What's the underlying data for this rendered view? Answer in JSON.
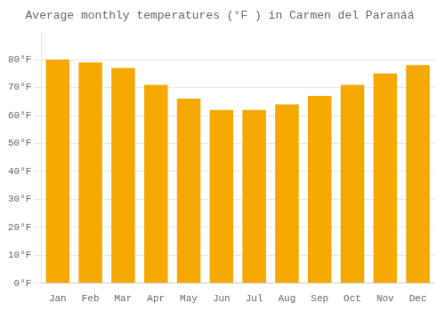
{
  "chart_data": {
    "type": "bar",
    "title": "Average monthly temperatures (°F ) in Carmen del Paranáá",
    "categories": [
      "Jan",
      "Feb",
      "Mar",
      "Apr",
      "May",
      "Jun",
      "Jul",
      "Aug",
      "Sep",
      "Oct",
      "Nov",
      "Dec"
    ],
    "values": [
      80,
      79,
      77,
      71,
      66,
      62,
      62,
      64,
      67,
      71,
      75,
      78
    ],
    "color": "#F5A800",
    "ylim": [
      0,
      90
    ],
    "yticks": [
      {
        "value": 0,
        "label": "0°F"
      },
      {
        "value": 10,
        "label": "10°F"
      },
      {
        "value": 20,
        "label": "20°F"
      },
      {
        "value": 30,
        "label": "30°F"
      },
      {
        "value": 40,
        "label": "40°F"
      },
      {
        "value": 50,
        "label": "50°F"
      },
      {
        "value": 60,
        "label": "60°F"
      },
      {
        "value": 70,
        "label": "70°F"
      },
      {
        "value": 80,
        "label": "80°F"
      }
    ],
    "grid": true
  }
}
